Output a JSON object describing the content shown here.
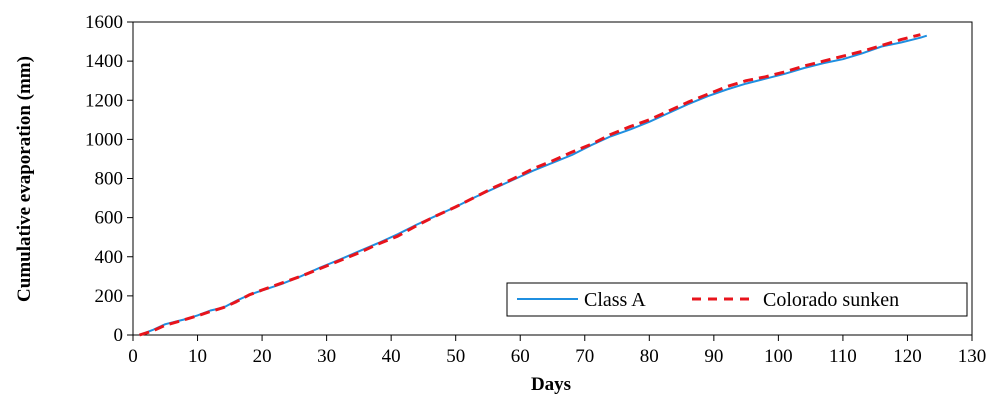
{
  "chart_data": {
    "type": "line",
    "xlabel": "Days",
    "ylabel": "Cumulative evaporation (mm)",
    "xlim": [
      0,
      130
    ],
    "ylim": [
      0,
      1600
    ],
    "xticks": [
      0,
      10,
      20,
      30,
      40,
      50,
      60,
      70,
      80,
      90,
      100,
      110,
      120,
      130
    ],
    "yticks": [
      0,
      200,
      400,
      600,
      800,
      1000,
      1200,
      1400,
      1600
    ],
    "grid": false,
    "legend_position": "bottom-right",
    "series": [
      {
        "name": "Class A",
        "color": "#1f8fe0",
        "style": "solid",
        "x": [
          1,
          3,
          5,
          8,
          10,
          12,
          14,
          16,
          18,
          20,
          23,
          26,
          29,
          32,
          35,
          38,
          41,
          44,
          47,
          50,
          53,
          56,
          59,
          62,
          65,
          68,
          71,
          74,
          77,
          80,
          83,
          86,
          89,
          92,
          95,
          98,
          101,
          104,
          107,
          110,
          113,
          116,
          119,
          122,
          123
        ],
        "y": [
          0,
          25,
          55,
          80,
          100,
          125,
          140,
          175,
          205,
          228,
          260,
          300,
          345,
          385,
          428,
          470,
          515,
          565,
          610,
          655,
          705,
          750,
          795,
          840,
          880,
          920,
          970,
          1015,
          1050,
          1090,
          1135,
          1180,
          1220,
          1255,
          1285,
          1310,
          1335,
          1365,
          1390,
          1410,
          1440,
          1475,
          1495,
          1520,
          1530
        ]
      },
      {
        "name": "Colorado sunken",
        "color": "#e8141c",
        "style": "dashed",
        "x": [
          1,
          3,
          5,
          8,
          10,
          12,
          14,
          16,
          18,
          20,
          23,
          26,
          29,
          32,
          35,
          38,
          41,
          44,
          47,
          50,
          53,
          56,
          59,
          62,
          65,
          68,
          71,
          74,
          77,
          80,
          83,
          86,
          89,
          92,
          95,
          98,
          101,
          104,
          107,
          110,
          113,
          116,
          119,
          122
        ],
        "y": [
          0,
          20,
          50,
          78,
          98,
          120,
          140,
          170,
          205,
          230,
          265,
          300,
          340,
          380,
          420,
          465,
          505,
          560,
          610,
          655,
          705,
          755,
          800,
          850,
          890,
          935,
          975,
          1025,
          1065,
          1100,
          1145,
          1190,
          1230,
          1270,
          1300,
          1320,
          1345,
          1375,
          1400,
          1425,
          1450,
          1480,
          1510,
          1535
        ]
      }
    ]
  }
}
